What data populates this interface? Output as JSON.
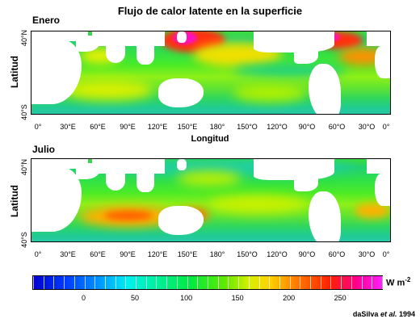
{
  "title": "Flujo de calor latente en la superficie",
  "panels": [
    {
      "label": "Enero",
      "lat_axis": "Latitud",
      "lat_ticks": [
        "40°N",
        "40°S"
      ]
    },
    {
      "label": "Julio",
      "lat_axis": "Latitud",
      "lat_ticks": [
        "40°N",
        "40°S"
      ]
    }
  ],
  "lon_ticks": [
    "0°",
    "30°E",
    "60°E",
    "90°E",
    "120°E",
    "150°E",
    "180°",
    "150°O",
    "120°O",
    "90°O",
    "60°O",
    "30°O",
    "0°"
  ],
  "lon_axis": "Longitud",
  "colorbar": {
    "ticks": [
      "0",
      "50",
      "100",
      "150",
      "200",
      "250"
    ],
    "tick_values": [
      0,
      50,
      100,
      150,
      200,
      250
    ],
    "range": [
      -50,
      290
    ],
    "units_main": "W m",
    "units_exp": "-2",
    "colors": [
      "#0000d0",
      "#00f0f0",
      "#00ea40",
      "#d8f000",
      "#ff8000",
      "#ff2000",
      "#ff20ff"
    ]
  },
  "credit": {
    "author": "daSilva",
    "etal": "et al.",
    "year": "1994"
  },
  "chart_data": {
    "type": "heatmap",
    "title": "Flujo de calor latente en la superficie",
    "xlabel": "Longitud",
    "ylabel": "Latitud",
    "units": "W m-2",
    "color_range": [
      -50,
      290
    ],
    "panels": [
      "Enero",
      "Julio"
    ]
  }
}
